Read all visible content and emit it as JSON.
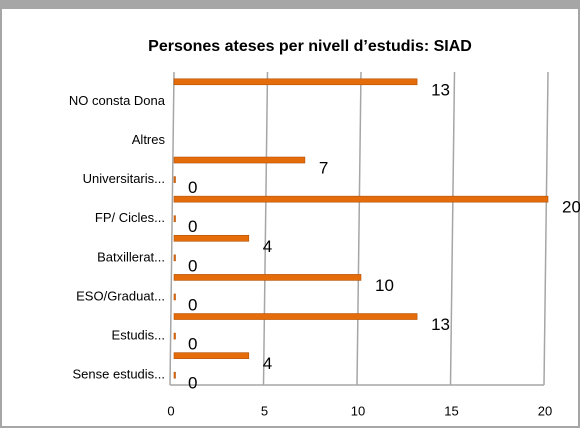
{
  "chart_data": {
    "type": "bar",
    "orientation": "horizontal",
    "title": "Persones ateses per nivell d’estudis: SIAD",
    "categories": [
      "Sense estudis...",
      null,
      "Estudis...",
      null,
      "ESO/Graduat...",
      null,
      "Batxillerat...",
      null,
      "FP/ Cicles...",
      null,
      "Universitaris...",
      null,
      "Altres",
      null,
      "NO consta Dona",
      null
    ],
    "values": [
      0,
      4,
      0,
      13,
      0,
      10,
      0,
      4,
      0,
      20,
      0,
      7,
      null,
      null,
      null,
      13
    ],
    "color": "#e46c0a",
    "xlim": [
      0,
      20
    ],
    "xticks": [
      0,
      5,
      10,
      15,
      20
    ],
    "grid": true
  }
}
